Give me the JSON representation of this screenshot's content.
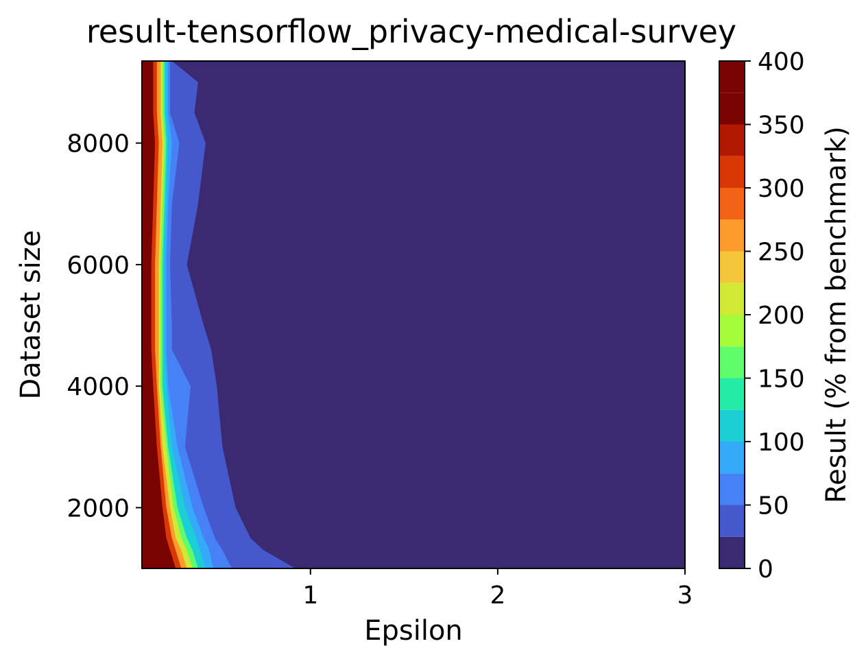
{
  "chart_data": {
    "type": "contourf",
    "title": "result-tensorflow_privacy-medical-survey",
    "xlabel": "Epsilon",
    "ylabel": "Dataset size",
    "xlim": [
      0.1,
      3.0
    ],
    "ylim": [
      1000,
      9350
    ],
    "xticks": [
      1,
      2,
      3
    ],
    "yticks": [
      2000,
      4000,
      6000,
      8000
    ],
    "grid": false,
    "colorbar": {
      "label": "Result (% from benchmark)",
      "ticks": [
        0,
        50,
        100,
        150,
        200,
        250,
        300,
        350,
        400
      ],
      "levels": [
        0,
        25,
        50,
        75,
        100,
        125,
        150,
        175,
        200,
        225,
        250,
        275,
        300,
        325,
        350,
        375,
        400
      ],
      "colors": [
        "#3b2a72",
        "#4559cd",
        "#4681f6",
        "#35aaf8",
        "#1bcfd4",
        "#24eca6",
        "#61fc6c",
        "#a4fc3b",
        "#d1e834",
        "#f3c63a",
        "#fe9b2d",
        "#f36315",
        "#d93806",
        "#b11901",
        "#7a0402",
        "#7a0402"
      ]
    },
    "contour_boundaries": {
      "note": "epsilon value at which the result falls below each level, per dataset size",
      "dataset_sizes": [
        1000,
        1300,
        1500,
        2000,
        3000,
        4000,
        4600,
        5000,
        6000,
        7000,
        8000,
        8500,
        9000,
        9350
      ],
      "levels": {
        "25": [
          0.92,
          0.75,
          0.68,
          0.6,
          0.53,
          0.5,
          0.47,
          0.43,
          0.34,
          0.4,
          0.44,
          0.38,
          0.4,
          0.26
        ],
        "50": [
          0.58,
          0.53,
          0.49,
          0.43,
          0.33,
          0.36,
          0.26,
          0.26,
          0.25,
          0.26,
          0.3,
          0.25,
          0.25,
          0.25
        ],
        "75": [
          0.48,
          0.46,
          0.43,
          0.37,
          0.29,
          0.24,
          0.23,
          0.23,
          0.23,
          0.24,
          0.26,
          0.24,
          0.24,
          0.24
        ],
        "100": [
          0.44,
          0.41,
          0.39,
          0.33,
          0.26,
          0.23,
          0.22,
          0.22,
          0.22,
          0.23,
          0.24,
          0.23,
          0.23,
          0.23
        ],
        "150": [
          0.4,
          0.37,
          0.34,
          0.29,
          0.24,
          0.21,
          0.21,
          0.21,
          0.21,
          0.22,
          0.23,
          0.22,
          0.22,
          0.22
        ],
        "200": [
          0.37,
          0.34,
          0.31,
          0.27,
          0.23,
          0.2,
          0.2,
          0.2,
          0.2,
          0.21,
          0.22,
          0.21,
          0.21,
          0.21
        ],
        "250": [
          0.34,
          0.31,
          0.28,
          0.25,
          0.21,
          0.19,
          0.19,
          0.19,
          0.19,
          0.2,
          0.21,
          0.2,
          0.2,
          0.2
        ],
        "300": [
          0.31,
          0.28,
          0.26,
          0.23,
          0.2,
          0.18,
          0.17,
          0.17,
          0.17,
          0.18,
          0.19,
          0.18,
          0.18,
          0.18
        ],
        "350": [
          0.28,
          0.25,
          0.23,
          0.21,
          0.18,
          0.16,
          0.15,
          0.15,
          0.15,
          0.16,
          0.17,
          0.16,
          0.16,
          0.16
        ],
        "375": [
          0.22,
          0.18,
          0.16,
          0.14,
          0.13,
          0.12,
          0.11,
          0.11,
          0.11,
          0.12,
          0.13,
          0.12,
          0.12,
          0.12
        ]
      }
    }
  }
}
